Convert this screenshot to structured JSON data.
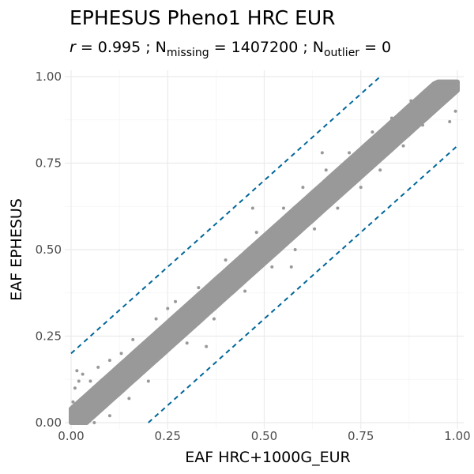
{
  "chart_data": {
    "type": "scatter",
    "title": "EPHESUS Pheno1 HRC EUR",
    "subtitle": {
      "r_symbol": "r",
      "r_text": " = 0.995 ; N",
      "missing_sub": "missing",
      "missing_text": " = 1407200 ; N",
      "outlier_sub": "outlier",
      "outlier_text": " = 0"
    },
    "xlabel": "EAF HRC+1000G_EUR",
    "ylabel": "EAF EPHESUS",
    "xlim": [
      0,
      1
    ],
    "ylim": [
      0,
      1
    ],
    "x_ticks": [
      0,
      0.25,
      0.5,
      0.75,
      1
    ],
    "x_tick_labels": [
      "0.00",
      "0.25",
      "0.50",
      "0.75",
      "1.00"
    ],
    "y_ticks": [
      0,
      0.25,
      0.5,
      0.75,
      1
    ],
    "y_tick_labels": [
      "0.00",
      "0.25",
      "0.50",
      "0.75",
      "1.00"
    ],
    "grid": true,
    "point_color": "#999999",
    "reference_lines": [
      {
        "slope": 1,
        "intercept": 0.2,
        "color": "#006699",
        "style": "dashed"
      },
      {
        "slope": 1,
        "intercept": -0.2,
        "color": "#006699",
        "style": "dashed"
      }
    ],
    "points_summary": {
      "core_band_halfwidth": 0.04,
      "y_max": 0.985
    },
    "points": [
      [
        0.005,
        0.06
      ],
      [
        0.01,
        0.1
      ],
      [
        0.02,
        0.12
      ],
      [
        0.015,
        0.15
      ],
      [
        0.03,
        0.14
      ],
      [
        0.05,
        0.12
      ],
      [
        0.07,
        0.16
      ],
      [
        0.1,
        0.18
      ],
      [
        0.13,
        0.2
      ],
      [
        0.16,
        0.24
      ],
      [
        0.02,
        0.01
      ],
      [
        0.06,
        0.0
      ],
      [
        0.1,
        0.02
      ],
      [
        0.15,
        0.07
      ],
      [
        0.2,
        0.12
      ],
      [
        0.22,
        0.3
      ],
      [
        0.25,
        0.33
      ],
      [
        0.27,
        0.35
      ],
      [
        0.3,
        0.23
      ],
      [
        0.33,
        0.39
      ],
      [
        0.37,
        0.3
      ],
      [
        0.4,
        0.47
      ],
      [
        0.45,
        0.38
      ],
      [
        0.48,
        0.55
      ],
      [
        0.52,
        0.45
      ],
      [
        0.55,
        0.62
      ],
      [
        0.58,
        0.5
      ],
      [
        0.6,
        0.68
      ],
      [
        0.63,
        0.56
      ],
      [
        0.66,
        0.73
      ],
      [
        0.69,
        0.62
      ],
      [
        0.72,
        0.78
      ],
      [
        0.75,
        0.68
      ],
      [
        0.78,
        0.84
      ],
      [
        0.8,
        0.73
      ],
      [
        0.83,
        0.88
      ],
      [
        0.86,
        0.8
      ],
      [
        0.88,
        0.93
      ],
      [
        0.91,
        0.86
      ],
      [
        0.94,
        0.9
      ],
      [
        0.97,
        0.93
      ],
      [
        0.98,
        0.87
      ],
      [
        0.995,
        0.9
      ],
      [
        0.96,
        0.96
      ],
      [
        0.65,
        0.78
      ],
      [
        0.35,
        0.22
      ],
      [
        0.47,
        0.62
      ],
      [
        0.57,
        0.45
      ]
    ]
  }
}
